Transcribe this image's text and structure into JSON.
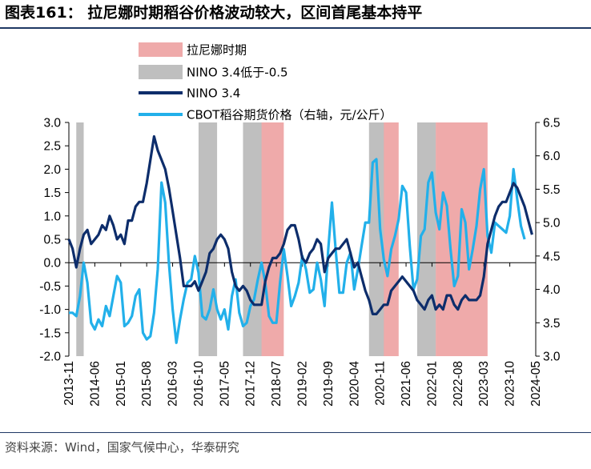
{
  "title": "图表161： 拉尼娜时期稻谷价格波动较大，区间首尾基本持平",
  "source": "资料来源：Wind，国家气候中心，华泰研究",
  "colors": {
    "lanina": "#efaaaa",
    "nino_neg": "#bfbfbf",
    "nino34": "#0d2d6b",
    "cbot": "#22b0ea",
    "axis": "#000000",
    "rule": "#1f3864"
  },
  "chart_data": {
    "type": "line",
    "title": "",
    "x_range": [
      "2013-11",
      "2024-05"
    ],
    "x_tick_labels": [
      "2013-11",
      "2014-06",
      "2015-01",
      "2015-08",
      "2016-03",
      "2016-10",
      "2017-05",
      "2017-12",
      "2018-07",
      "2019-02",
      "2019-09",
      "2020-04",
      "2020-11",
      "2021-06",
      "2022-01",
      "2022-08",
      "2023-03",
      "2023-10",
      "2024-05"
    ],
    "y_left": {
      "range": [
        -2.0,
        3.0
      ],
      "ticks": [
        "-2.0",
        "-1.5",
        "-1.0",
        "-0.5",
        "0.0",
        "0.5",
        "1.0",
        "1.5",
        "2.0",
        "2.5",
        "3.0"
      ]
    },
    "y_right": {
      "range": [
        3.0,
        6.5
      ],
      "ticks": [
        "3.0",
        "3.5",
        "4.0",
        "4.5",
        "5.0",
        "5.5",
        "6.0",
        "6.5"
      ]
    },
    "legend": [
      {
        "label": "拉尼娜时期",
        "kind": "band",
        "color": "#efaaaa"
      },
      {
        "label": "NINO 3.4低于-0.5",
        "kind": "band",
        "color": "#bfbfbf"
      },
      {
        "label": "NINO 3.4",
        "kind": "line",
        "color": "#0d2d6b"
      },
      {
        "label": "CBOT稻谷期货价格（右轴，元/公斤）",
        "kind": "line",
        "color": "#22b0ea"
      }
    ],
    "lanina_periods": [
      [
        "2018-02",
        "2018-08"
      ],
      [
        "2020-11",
        "2021-03"
      ],
      [
        "2022-02",
        "2023-03"
      ]
    ],
    "nino_below_periods": [
      [
        "2014-01",
        "2014-02"
      ],
      [
        "2016-10",
        "2017-02"
      ],
      [
        "2017-10",
        "2018-02"
      ],
      [
        "2020-08",
        "2020-11"
      ],
      [
        "2021-09",
        "2022-01"
      ]
    ],
    "series": [
      {
        "name": "NINO 3.4",
        "axis": "left",
        "start": "2013-11",
        "step": "1 month",
        "values": [
          0.5,
          0.3,
          -0.1,
          0.3,
          0.6,
          0.7,
          0.4,
          0.5,
          0.6,
          0.8,
          0.7,
          1.0,
          0.8,
          0.5,
          0.6,
          0.4,
          0.9,
          0.9,
          1.2,
          1.3,
          1.3,
          1.7,
          2.2,
          2.7,
          2.4,
          2.2,
          2.0,
          1.6,
          1.1,
          0.6,
          0.1,
          -0.5,
          -0.5,
          -0.5,
          -0.4,
          -0.6,
          -0.4,
          -0.2,
          0.2,
          0.3,
          0.5,
          0.6,
          0.5,
          0.3,
          -0.2,
          -0.5,
          -0.6,
          -0.5,
          -0.6,
          -0.8,
          -0.9,
          -0.9,
          -0.9,
          -0.4,
          -0.1,
          0.1,
          0.1,
          0.2,
          0.4,
          0.7,
          0.8,
          0.8,
          0.5,
          0.1,
          0.0,
          0.2,
          0.3,
          0.5,
          0.4,
          -0.2,
          0.1,
          0.2,
          0.3,
          0.3,
          0.4,
          0.5,
          0.2,
          -0.1,
          0.0,
          -0.3,
          -0.6,
          -0.8,
          -1.1,
          -1.1,
          -1.0,
          -0.9,
          -0.9,
          -0.6,
          -0.5,
          -0.4,
          -0.3,
          -0.4,
          -0.5,
          -0.6,
          -0.8,
          -0.9,
          -1.0,
          -0.8,
          -0.7,
          -1.0,
          -0.9,
          -1.0,
          -0.7,
          -0.7,
          -0.9,
          -1.0,
          -0.8,
          -0.7,
          -0.8,
          -0.8,
          -0.8,
          -0.7,
          -0.3,
          0.4,
          0.7,
          1.0,
          1.2,
          1.3,
          1.3,
          1.5,
          1.7,
          1.6,
          1.4,
          1.2,
          0.9,
          0.6
        ]
      },
      {
        "name": "CBOT稻谷期货价格（右轴，元/公斤）",
        "axis": "right",
        "start": "2013-11",
        "step": "1 month",
        "values": [
          3.65,
          3.65,
          3.6,
          3.9,
          4.4,
          4.1,
          3.5,
          3.4,
          3.55,
          3.45,
          3.75,
          3.6,
          3.9,
          4.2,
          4.1,
          3.45,
          3.5,
          3.6,
          3.9,
          4.0,
          3.35,
          3.25,
          3.3,
          3.65,
          4.3,
          5.6,
          5.3,
          4.4,
          3.7,
          3.2,
          3.55,
          3.85,
          4.1,
          4.15,
          4.5,
          4.25,
          3.6,
          3.55,
          3.7,
          4.0,
          3.7,
          3.55,
          3.7,
          3.4,
          3.9,
          4.15,
          3.65,
          3.45,
          3.5,
          3.75,
          3.85,
          4.15,
          4.4,
          4.1,
          3.6,
          3.5,
          3.5,
          4.1,
          4.6,
          4.2,
          3.75,
          3.9,
          4.1,
          4.5,
          4.3,
          3.95,
          4.0,
          4.4,
          4.15,
          3.75,
          4.6,
          5.3,
          4.6,
          3.95,
          3.95,
          4.4,
          4.55,
          4.0,
          4.3,
          4.65,
          5.0,
          5.0,
          5.9,
          5.95,
          4.9,
          4.45,
          4.2,
          4.6,
          4.8,
          5.05,
          5.55,
          5.45,
          4.65,
          4.0,
          4.15,
          4.8,
          4.9,
          5.6,
          5.75,
          5.15,
          4.9,
          5.45,
          5.25,
          4.6,
          4.05,
          4.2,
          5.2,
          5.0,
          4.3,
          4.6,
          4.95,
          5.5,
          5.8,
          4.8,
          4.55,
          5.0,
          4.95,
          4.9,
          4.85,
          5.1,
          5.8,
          5.35,
          4.95,
          4.75
        ]
      }
    ]
  }
}
